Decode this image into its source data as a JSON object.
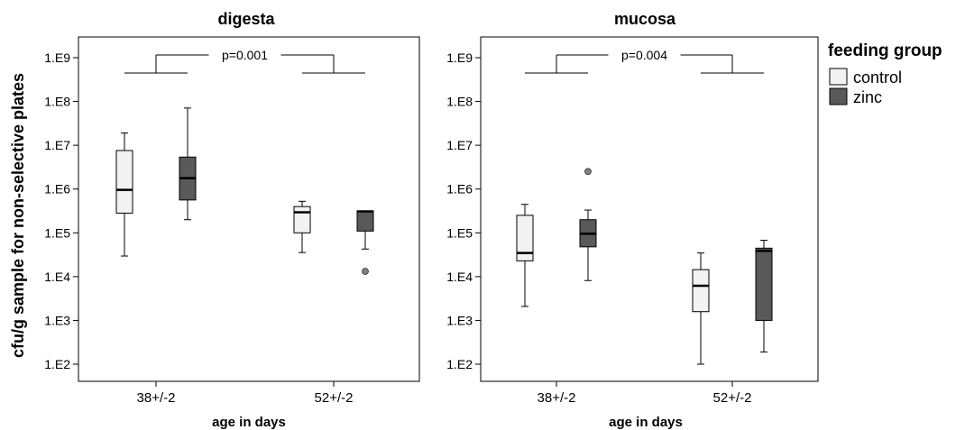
{
  "ylabel": "cfu/g sample for non-selective plates",
  "legend": {
    "title": "feeding group",
    "items": [
      {
        "name": "control",
        "color": "#f2f2f2"
      },
      {
        "name": "zinc",
        "color": "#595959"
      }
    ]
  },
  "colors": {
    "control": "#f2f2f2",
    "zinc": "#595959",
    "outlier": "#808080"
  },
  "chart_data": [
    {
      "type": "box",
      "title": "digesta",
      "xlabel": "age in days",
      "categories": [
        "38+/-2",
        "52+/-2"
      ],
      "y_scale": "log10",
      "ylim": [
        1.2,
        9.5
      ],
      "ytick_labels": [
        "1.E2",
        "1.E3",
        "1.E4",
        "1.E5",
        "1.E6",
        "1.E7",
        "1.E8",
        "1.E9"
      ],
      "significance": {
        "label": "p=0.001",
        "compares": [
          "38+/-2",
          "52+/-2"
        ]
      },
      "series": [
        {
          "name": "control",
          "boxes": [
            {
              "category": "38+/-2",
              "min": 4.47,
              "q1": 5.45,
              "median": 5.98,
              "q3": 6.88,
              "max": 7.28,
              "outliers": []
            },
            {
              "category": "52+/-2",
              "min": 4.55,
              "q1": 5.0,
              "median": 5.47,
              "q3": 5.6,
              "max": 5.72,
              "outliers": []
            }
          ]
        },
        {
          "name": "zinc",
          "boxes": [
            {
              "category": "38+/-2",
              "min": 5.3,
              "q1": 5.75,
              "median": 6.25,
              "q3": 6.73,
              "max": 7.85,
              "outliers": []
            },
            {
              "category": "52+/-2",
              "min": 4.63,
              "q1": 5.04,
              "median": 5.49,
              "q3": 5.5,
              "max": 5.5,
              "outliers": [
                4.12
              ]
            }
          ]
        }
      ]
    },
    {
      "type": "box",
      "title": "mucosa",
      "xlabel": "age in days",
      "categories": [
        "38+/-2",
        "52+/-2"
      ],
      "y_scale": "log10",
      "ylim": [
        1.2,
        9.5
      ],
      "ytick_labels": [
        "1.E2",
        "1.E3",
        "1.E4",
        "1.E5",
        "1.E6",
        "1.E7",
        "1.E8",
        "1.E9"
      ],
      "significance": {
        "label": "p=0.004",
        "compares": [
          "38+/-2",
          "52+/-2"
        ]
      },
      "series": [
        {
          "name": "control",
          "boxes": [
            {
              "category": "38+/-2",
              "min": 3.32,
              "q1": 4.36,
              "median": 4.54,
              "q3": 5.4,
              "max": 5.65,
              "outliers": []
            },
            {
              "category": "52+/-2",
              "min": 2.0,
              "q1": 3.2,
              "median": 3.79,
              "q3": 4.16,
              "max": 4.54,
              "outliers": []
            }
          ]
        },
        {
          "name": "zinc",
          "boxes": [
            {
              "category": "38+/-2",
              "min": 3.91,
              "q1": 4.68,
              "median": 4.98,
              "q3": 5.3,
              "max": 5.52,
              "outliers": [
                6.4
              ]
            },
            {
              "category": "52+/-2",
              "min": 2.28,
              "q1": 3.0,
              "median": 4.59,
              "q3": 4.65,
              "max": 4.83,
              "outliers": []
            }
          ]
        }
      ]
    }
  ]
}
